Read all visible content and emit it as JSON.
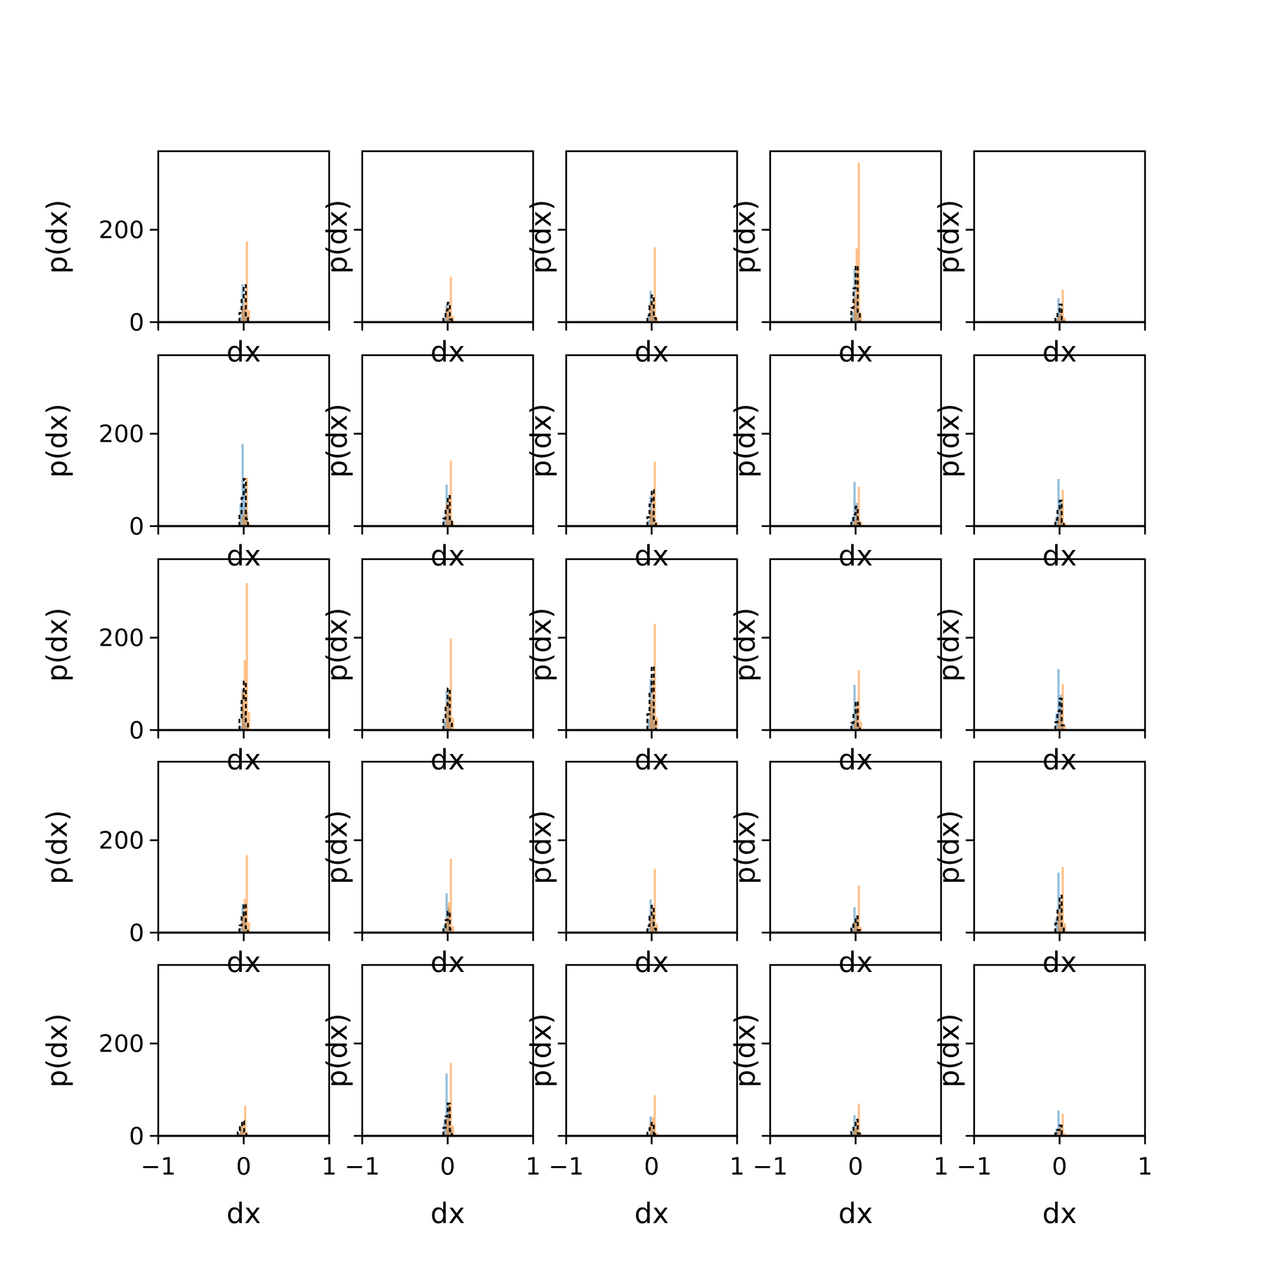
{
  "figure": {
    "rows": 5,
    "cols": 5
  },
  "colors": {
    "series_blue": "#1f77b4",
    "series_orange": "#ff7f0e",
    "outline": "#000000"
  },
  "chart_data": {
    "type": "bar",
    "layout": "grid 5x5 histograms, shared axes",
    "xlabel": "dx",
    "ylabel": "p(dx)",
    "xlim": [
      -1,
      1
    ],
    "ylim": [
      0,
      370
    ],
    "xticks": [
      -1,
      0,
      1
    ],
    "xtick_labels": [
      "−1",
      "0",
      "1"
    ],
    "yticks": [
      0,
      200
    ],
    "ytick_labels": [
      "0",
      "200"
    ],
    "grid": false,
    "legend": "none",
    "panels": [
      {
        "row": 0,
        "col": 0,
        "blue_peak": 82,
        "orange_peak": 175,
        "black_peak": 80,
        "offset": 0.0
      },
      {
        "row": 0,
        "col": 1,
        "blue_peak": 38,
        "orange_peak": 98,
        "black_peak": 42,
        "offset": 0.0
      },
      {
        "row": 0,
        "col": 2,
        "blue_peak": 68,
        "orange_peak": 162,
        "black_peak": 58,
        "offset": 0.0
      },
      {
        "row": 0,
        "col": 3,
        "blue_peak": 115,
        "orange_peak": 345,
        "black_peak": 122,
        "offset": 0.0
      },
      {
        "row": 0,
        "col": 4,
        "blue_peak": 52,
        "orange_peak": 70,
        "black_peak": 38,
        "offset": 0.0
      },
      {
        "row": 1,
        "col": 0,
        "blue_peak": 178,
        "orange_peak": 105,
        "black_peak": 102,
        "offset": 0.0
      },
      {
        "row": 1,
        "col": 1,
        "blue_peak": 90,
        "orange_peak": 142,
        "black_peak": 65,
        "offset": 0.0
      },
      {
        "row": 1,
        "col": 2,
        "blue_peak": 65,
        "orange_peak": 140,
        "black_peak": 78,
        "offset": 0.0
      },
      {
        "row": 1,
        "col": 3,
        "blue_peak": 96,
        "orange_peak": 85,
        "black_peak": 42,
        "offset": 0.0
      },
      {
        "row": 1,
        "col": 4,
        "blue_peak": 102,
        "orange_peak": 78,
        "black_peak": 55,
        "offset": 0.0
      },
      {
        "row": 2,
        "col": 0,
        "blue_peak": 88,
        "orange_peak": 318,
        "black_peak": 105,
        "offset": 0.0
      },
      {
        "row": 2,
        "col": 1,
        "blue_peak": 85,
        "orange_peak": 198,
        "black_peak": 90,
        "offset": 0.0
      },
      {
        "row": 2,
        "col": 2,
        "blue_peak": 110,
        "orange_peak": 230,
        "black_peak": 138,
        "offset": 0.0
      },
      {
        "row": 2,
        "col": 3,
        "blue_peak": 98,
        "orange_peak": 130,
        "black_peak": 62,
        "offset": 0.0
      },
      {
        "row": 2,
        "col": 4,
        "blue_peak": 132,
        "orange_peak": 100,
        "black_peak": 68,
        "offset": 0.0
      },
      {
        "row": 3,
        "col": 0,
        "blue_peak": 62,
        "orange_peak": 168,
        "black_peak": 62,
        "offset": 0.0
      },
      {
        "row": 3,
        "col": 1,
        "blue_peak": 85,
        "orange_peak": 160,
        "black_peak": 45,
        "offset": 0.0
      },
      {
        "row": 3,
        "col": 2,
        "blue_peak": 72,
        "orange_peak": 138,
        "black_peak": 58,
        "offset": 0.0
      },
      {
        "row": 3,
        "col": 3,
        "blue_peak": 55,
        "orange_peak": 102,
        "black_peak": 35,
        "offset": 0.0
      },
      {
        "row": 3,
        "col": 4,
        "blue_peak": 130,
        "orange_peak": 142,
        "black_peak": 80,
        "offset": 0.0
      },
      {
        "row": 4,
        "col": 0,
        "blue_peak": 22,
        "orange_peak": 65,
        "black_peak": 32,
        "offset": -0.02
      },
      {
        "row": 4,
        "col": 1,
        "blue_peak": 135,
        "orange_peak": 158,
        "black_peak": 70,
        "offset": 0.0
      },
      {
        "row": 4,
        "col": 2,
        "blue_peak": 42,
        "orange_peak": 88,
        "black_peak": 28,
        "offset": 0.0
      },
      {
        "row": 4,
        "col": 3,
        "blue_peak": 45,
        "orange_peak": 70,
        "black_peak": 35,
        "offset": 0.0
      },
      {
        "row": 4,
        "col": 4,
        "blue_peak": 55,
        "orange_peak": 48,
        "black_peak": 22,
        "offset": 0.0
      }
    ]
  }
}
